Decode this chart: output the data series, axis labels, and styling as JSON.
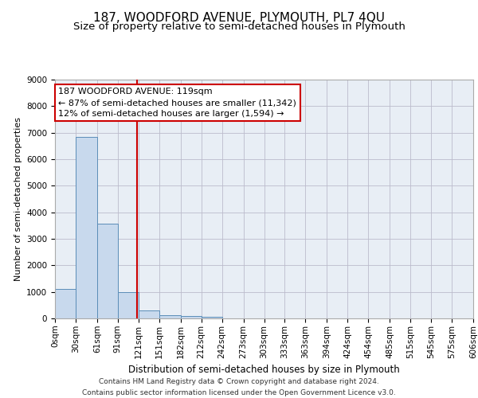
{
  "title": "187, WOODFORD AVENUE, PLYMOUTH, PL7 4QU",
  "subtitle": "Size of property relative to semi-detached houses in Plymouth",
  "xlabel": "Distribution of semi-detached houses by size in Plymouth",
  "ylabel": "Number of semi-detached properties",
  "footer_line1": "Contains HM Land Registry data © Crown copyright and database right 2024.",
  "footer_line2": "Contains public sector information licensed under the Open Government Licence v3.0.",
  "annotation_line1": "187 WOODFORD AVENUE: 119sqm",
  "annotation_line2": "← 87% of semi-detached houses are smaller (11,342)",
  "annotation_line3": "12% of semi-detached houses are larger (1,594) →",
  "property_size": 119,
  "bin_edges": [
    0,
    30,
    61,
    91,
    121,
    151,
    182,
    212,
    242,
    273,
    303,
    333,
    363,
    394,
    424,
    454,
    485,
    515,
    545,
    575,
    606
  ],
  "bar_heights": [
    1100,
    6850,
    3560,
    1000,
    310,
    130,
    100,
    70,
    0,
    0,
    0,
    0,
    0,
    0,
    0,
    0,
    0,
    0,
    0,
    0
  ],
  "bar_color": "#c8d9ed",
  "bar_edge_color": "#5b8db8",
  "vline_color": "#cc0000",
  "vline_x": 119,
  "annotation_box_edge_color": "#cc0000",
  "ylim": [
    0,
    9000
  ],
  "yticks": [
    0,
    1000,
    2000,
    3000,
    4000,
    5000,
    6000,
    7000,
    8000,
    9000
  ],
  "grid_color": "#bbbbcc",
  "bg_color": "#e8eef5",
  "title_fontsize": 11,
  "subtitle_fontsize": 9.5,
  "axis_label_fontsize": 8.5,
  "ylabel_fontsize": 8,
  "tick_fontsize": 7.5,
  "annotation_fontsize": 8,
  "footer_fontsize": 6.5
}
